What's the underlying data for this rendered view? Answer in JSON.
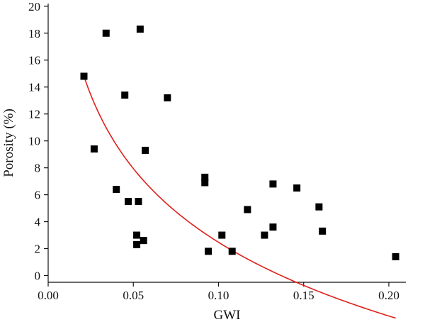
{
  "chart_data": {
    "type": "scatter",
    "title": "",
    "xlabel": "GWI",
    "ylabel": "Porosity (%)",
    "xlim": [
      0.0,
      0.21
    ],
    "ylim": [
      -0.5,
      20.2
    ],
    "xticks": [
      0.0,
      0.05,
      0.1,
      0.15,
      0.2
    ],
    "xtick_labels": [
      "0.00",
      "0.05",
      "0.10",
      "0.15",
      "0.20"
    ],
    "yticks": [
      0,
      2,
      4,
      6,
      8,
      10,
      12,
      14,
      16,
      18,
      20
    ],
    "ytick_labels": [
      "0",
      "2",
      "4",
      "6",
      "8",
      "10",
      "12",
      "14",
      "16",
      "18",
      "20"
    ],
    "grid": false,
    "legend": "none",
    "marker_color": "#000000",
    "fit_color": "#e0201b",
    "points": [
      {
        "x": 0.021,
        "y": 14.8
      },
      {
        "x": 0.027,
        "y": 9.4
      },
      {
        "x": 0.034,
        "y": 18.0
      },
      {
        "x": 0.04,
        "y": 6.4
      },
      {
        "x": 0.045,
        "y": 13.4
      },
      {
        "x": 0.047,
        "y": 5.5
      },
      {
        "x": 0.052,
        "y": 3.0
      },
      {
        "x": 0.052,
        "y": 2.3
      },
      {
        "x": 0.053,
        "y": 5.5
      },
      {
        "x": 0.054,
        "y": 18.3
      },
      {
        "x": 0.056,
        "y": 2.6
      },
      {
        "x": 0.057,
        "y": 9.3
      },
      {
        "x": 0.07,
        "y": 13.2
      },
      {
        "x": 0.092,
        "y": 7.3
      },
      {
        "x": 0.092,
        "y": 6.9
      },
      {
        "x": 0.094,
        "y": 1.8
      },
      {
        "x": 0.102,
        "y": 3.0
      },
      {
        "x": 0.108,
        "y": 1.8
      },
      {
        "x": 0.117,
        "y": 4.9
      },
      {
        "x": 0.127,
        "y": 3.0
      },
      {
        "x": 0.132,
        "y": 6.8
      },
      {
        "x": 0.132,
        "y": 3.6
      },
      {
        "x": 0.146,
        "y": 6.5
      },
      {
        "x": 0.159,
        "y": 5.1
      },
      {
        "x": 0.161,
        "y": 3.3
      },
      {
        "x": 0.204,
        "y": 1.4
      }
    ],
    "fit_curve": {
      "type": "logarithmic",
      "a": -7.9,
      "b": 14.8,
      "x0": 0.021,
      "x_range": [
        0.021,
        0.204
      ]
    }
  }
}
